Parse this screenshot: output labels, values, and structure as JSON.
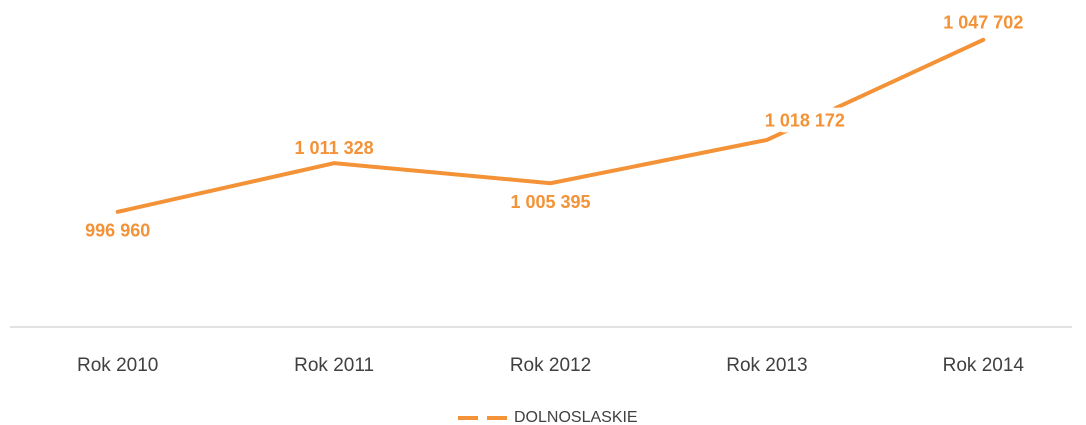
{
  "chart_data": {
    "type": "line",
    "categories": [
      "Rok 2010",
      "Rok 2011",
      "Rok 2012",
      "Rok 2013",
      "Rok 2014"
    ],
    "series": [
      {
        "name": "DOLNOSLASKIE",
        "color": "#f39237",
        "values": [
          996960,
          1011328,
          1005395,
          1018172,
          1047702
        ],
        "value_labels": [
          "996 960",
          "1 011 328",
          "1 005 395",
          "1 018 172",
          "1 047 702"
        ]
      }
    ],
    "ylim": [
      963000,
      1050000
    ],
    "legend": "bottom"
  }
}
